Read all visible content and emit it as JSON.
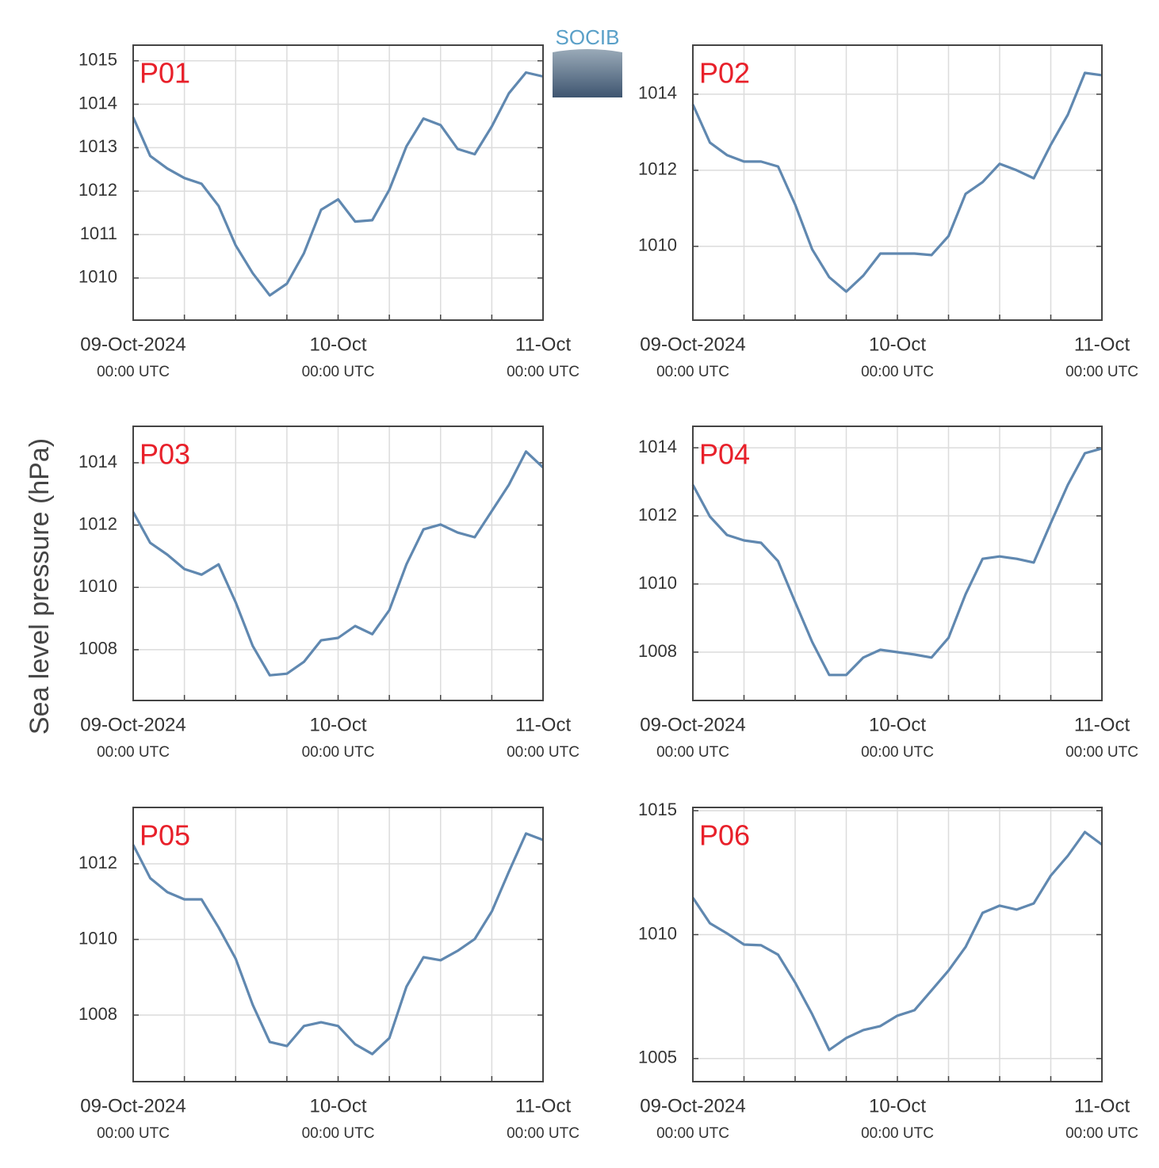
{
  "ylabel": "Sea level pressure (hPa)",
  "logo": "SOCIB",
  "chart_data": [
    {
      "type": "line",
      "title": "P01",
      "color": "#6088b0",
      "grid": true,
      "x": [
        "2024-10-09T00:00",
        "2024-10-09T02:00",
        "2024-10-09T04:00",
        "2024-10-09T06:00",
        "2024-10-09T08:00",
        "2024-10-09T10:00",
        "2024-10-09T12:00",
        "2024-10-09T14:00",
        "2024-10-09T16:00",
        "2024-10-09T18:00",
        "2024-10-09T20:00",
        "2024-10-09T22:00",
        "2024-10-10T00:00",
        "2024-10-10T02:00",
        "2024-10-10T04:00",
        "2024-10-10T06:00",
        "2024-10-10T08:00",
        "2024-10-10T10:00",
        "2024-10-10T12:00",
        "2024-10-10T14:00",
        "2024-10-10T16:00",
        "2024-10-10T18:00",
        "2024-10-10T20:00",
        "2024-10-10T22:00",
        "2024-10-11T00:00"
      ],
      "values": [
        1013.7,
        1012.81,
        1012.52,
        1012.3,
        1012.17,
        1011.66,
        1010.75,
        1010.11,
        1009.6,
        1009.87,
        1010.57,
        1011.57,
        1011.81,
        1011.3,
        1011.33,
        1012.03,
        1013.03,
        1013.67,
        1013.52,
        1012.97,
        1012.85,
        1013.49,
        1014.25,
        1014.73,
        1014.64
      ],
      "xlim": [
        "2024-10-09T00:00",
        "2024-10-11T00:00"
      ],
      "xticks": [
        {
          "value": "2024-10-09T00:00",
          "label": [
            "09-Oct-2024",
            "00:00 UTC"
          ]
        },
        {
          "value": "2024-10-09T06:00",
          "label": null
        },
        {
          "value": "2024-10-09T12:00",
          "label": null
        },
        {
          "value": "2024-10-09T18:00",
          "label": null
        },
        {
          "value": "2024-10-10T00:00",
          "label": [
            "10-Oct",
            "00:00 UTC"
          ]
        },
        {
          "value": "2024-10-10T06:00",
          "label": null
        },
        {
          "value": "2024-10-10T12:00",
          "label": null
        },
        {
          "value": "2024-10-10T18:00",
          "label": null
        },
        {
          "value": "2024-10-11T00:00",
          "label": [
            "11-Oct",
            "00:00 UTC"
          ]
        }
      ],
      "ylim": [
        1009.03,
        1015.36
      ],
      "yticks": [
        1010,
        1011,
        1012,
        1013,
        1014,
        1015
      ]
    },
    {
      "type": "line",
      "title": "P02",
      "color": "#6088b0",
      "grid": true,
      "x": [
        "2024-10-09T00:00",
        "2024-10-09T02:00",
        "2024-10-09T04:00",
        "2024-10-09T06:00",
        "2024-10-09T08:00",
        "2024-10-09T10:00",
        "2024-10-09T12:00",
        "2024-10-09T14:00",
        "2024-10-09T16:00",
        "2024-10-09T18:00",
        "2024-10-09T20:00",
        "2024-10-09T22:00",
        "2024-10-10T00:00",
        "2024-10-10T02:00",
        "2024-10-10T04:00",
        "2024-10-10T06:00",
        "2024-10-10T08:00",
        "2024-10-10T10:00",
        "2024-10-10T12:00",
        "2024-10-10T14:00",
        "2024-10-10T16:00",
        "2024-10-10T18:00",
        "2024-10-10T20:00",
        "2024-10-10T22:00",
        "2024-10-11T00:00"
      ],
      "values": [
        1013.73,
        1012.73,
        1012.4,
        1012.23,
        1012.23,
        1012.1,
        1011.1,
        1009.92,
        1009.19,
        1008.81,
        1009.23,
        1009.81,
        1009.81,
        1009.81,
        1009.77,
        1010.27,
        1011.38,
        1011.69,
        1012.17,
        1012.0,
        1011.79,
        1012.67,
        1013.46,
        1014.56,
        1014.5
      ],
      "xlim": [
        "2024-10-09T00:00",
        "2024-10-11T00:00"
      ],
      "xticks": [
        {
          "value": "2024-10-09T00:00",
          "label": [
            "09-Oct-2024",
            "00:00 UTC"
          ]
        },
        {
          "value": "2024-10-09T06:00",
          "label": null
        },
        {
          "value": "2024-10-09T12:00",
          "label": null
        },
        {
          "value": "2024-10-09T18:00",
          "label": null
        },
        {
          "value": "2024-10-10T00:00",
          "label": [
            "10-Oct",
            "00:00 UTC"
          ]
        },
        {
          "value": "2024-10-10T06:00",
          "label": null
        },
        {
          "value": "2024-10-10T12:00",
          "label": null
        },
        {
          "value": "2024-10-10T18:00",
          "label": null
        },
        {
          "value": "2024-10-11T00:00",
          "label": [
            "11-Oct",
            "00:00 UTC"
          ]
        }
      ],
      "ylim": [
        1008.06,
        1015.29
      ],
      "yticks": [
        1010,
        1012,
        1014
      ]
    },
    {
      "type": "line",
      "title": "P03",
      "color": "#6088b0",
      "grid": true,
      "x": [
        "2024-10-09T00:00",
        "2024-10-09T02:00",
        "2024-10-09T04:00",
        "2024-10-09T06:00",
        "2024-10-09T08:00",
        "2024-10-09T10:00",
        "2024-10-09T12:00",
        "2024-10-09T14:00",
        "2024-10-09T16:00",
        "2024-10-09T18:00",
        "2024-10-09T20:00",
        "2024-10-09T22:00",
        "2024-10-10T00:00",
        "2024-10-10T02:00",
        "2024-10-10T04:00",
        "2024-10-10T06:00",
        "2024-10-10T08:00",
        "2024-10-10T10:00",
        "2024-10-10T12:00",
        "2024-10-10T14:00",
        "2024-10-10T16:00",
        "2024-10-10T18:00",
        "2024-10-10T20:00",
        "2024-10-10T22:00",
        "2024-10-11T00:00"
      ],
      "values": [
        1012.42,
        1011.43,
        1011.05,
        1010.59,
        1010.41,
        1010.74,
        1009.52,
        1008.12,
        1007.18,
        1007.23,
        1007.61,
        1008.3,
        1008.38,
        1008.76,
        1008.5,
        1009.27,
        1010.74,
        1011.86,
        1012.02,
        1011.76,
        1011.61,
        1012.45,
        1013.29,
        1014.36,
        1013.85
      ],
      "xlim": [
        "2024-10-09T00:00",
        "2024-10-11T00:00"
      ],
      "xticks": [
        {
          "value": "2024-10-09T00:00",
          "label": [
            "09-Oct-2024",
            "00:00 UTC"
          ]
        },
        {
          "value": "2024-10-09T06:00",
          "label": null
        },
        {
          "value": "2024-10-09T12:00",
          "label": null
        },
        {
          "value": "2024-10-09T18:00",
          "label": null
        },
        {
          "value": "2024-10-10T00:00",
          "label": [
            "10-Oct",
            "00:00 UTC"
          ]
        },
        {
          "value": "2024-10-10T06:00",
          "label": null
        },
        {
          "value": "2024-10-10T12:00",
          "label": null
        },
        {
          "value": "2024-10-10T18:00",
          "label": null
        },
        {
          "value": "2024-10-11T00:00",
          "label": [
            "11-Oct",
            "00:00 UTC"
          ]
        }
      ],
      "ylim": [
        1006.37,
        1015.17
      ],
      "yticks": [
        1008,
        1010,
        1012,
        1014
      ]
    },
    {
      "type": "line",
      "title": "P04",
      "color": "#6088b0",
      "grid": true,
      "x": [
        "2024-10-09T00:00",
        "2024-10-09T02:00",
        "2024-10-09T04:00",
        "2024-10-09T06:00",
        "2024-10-09T08:00",
        "2024-10-09T10:00",
        "2024-10-09T12:00",
        "2024-10-09T14:00",
        "2024-10-09T16:00",
        "2024-10-09T18:00",
        "2024-10-09T20:00",
        "2024-10-09T22:00",
        "2024-10-10T00:00",
        "2024-10-10T02:00",
        "2024-10-10T04:00",
        "2024-10-10T06:00",
        "2024-10-10T08:00",
        "2024-10-10T10:00",
        "2024-10-10T12:00",
        "2024-10-10T14:00",
        "2024-10-10T16:00",
        "2024-10-10T18:00",
        "2024-10-10T20:00",
        "2024-10-10T22:00",
        "2024-10-11T00:00"
      ],
      "values": [
        1012.91,
        1011.98,
        1011.44,
        1011.28,
        1011.21,
        1010.67,
        1009.47,
        1008.3,
        1007.33,
        1007.33,
        1007.84,
        1008.07,
        1008.0,
        1007.93,
        1007.84,
        1008.42,
        1009.7,
        1010.74,
        1010.81,
        1010.74,
        1010.63,
        1011.79,
        1012.91,
        1013.84,
        1013.98
      ],
      "xlim": [
        "2024-10-09T00:00",
        "2024-10-11T00:00"
      ],
      "xticks": [
        {
          "value": "2024-10-09T00:00",
          "label": [
            "09-Oct-2024",
            "00:00 UTC"
          ]
        },
        {
          "value": "2024-10-09T06:00",
          "label": null
        },
        {
          "value": "2024-10-09T12:00",
          "label": null
        },
        {
          "value": "2024-10-09T18:00",
          "label": null
        },
        {
          "value": "2024-10-10T00:00",
          "label": [
            "10-Oct",
            "00:00 UTC"
          ]
        },
        {
          "value": "2024-10-10T06:00",
          "label": null
        },
        {
          "value": "2024-10-10T12:00",
          "label": null
        },
        {
          "value": "2024-10-10T18:00",
          "label": null
        },
        {
          "value": "2024-10-11T00:00",
          "label": [
            "11-Oct",
            "00:00 UTC"
          ]
        }
      ],
      "ylim": [
        1006.58,
        1014.63
      ],
      "yticks": [
        1008,
        1010,
        1012,
        1014
      ]
    },
    {
      "type": "line",
      "title": "P05",
      "color": "#6088b0",
      "grid": true,
      "x": [
        "2024-10-09T00:00",
        "2024-10-09T02:00",
        "2024-10-09T04:00",
        "2024-10-09T06:00",
        "2024-10-09T08:00",
        "2024-10-09T10:00",
        "2024-10-09T12:00",
        "2024-10-09T14:00",
        "2024-10-09T16:00",
        "2024-10-09T18:00",
        "2024-10-09T20:00",
        "2024-10-09T22:00",
        "2024-10-10T00:00",
        "2024-10-10T02:00",
        "2024-10-10T04:00",
        "2024-10-10T06:00",
        "2024-10-10T08:00",
        "2024-10-10T10:00",
        "2024-10-10T12:00",
        "2024-10-10T14:00",
        "2024-10-10T16:00",
        "2024-10-10T18:00",
        "2024-10-10T20:00",
        "2024-10-10T22:00",
        "2024-10-11T00:00"
      ],
      "values": [
        1012.5,
        1011.62,
        1011.25,
        1011.06,
        1011.06,
        1010.32,
        1009.49,
        1008.27,
        1007.29,
        1007.18,
        1007.71,
        1007.81,
        1007.71,
        1007.23,
        1006.97,
        1007.39,
        1008.75,
        1009.53,
        1009.45,
        1009.7,
        1010.01,
        1010.74,
        1011.79,
        1012.8,
        1012.63
      ],
      "xlim": [
        "2024-10-09T00:00",
        "2024-10-11T00:00"
      ],
      "xticks": [
        {
          "value": "2024-10-09T00:00",
          "label": [
            "09-Oct-2024",
            "00:00 UTC"
          ]
        },
        {
          "value": "2024-10-09T06:00",
          "label": null
        },
        {
          "value": "2024-10-09T12:00",
          "label": null
        },
        {
          "value": "2024-10-09T18:00",
          "label": null
        },
        {
          "value": "2024-10-10T00:00",
          "label": [
            "10-Oct",
            "00:00 UTC"
          ]
        },
        {
          "value": "2024-10-10T06:00",
          "label": null
        },
        {
          "value": "2024-10-10T12:00",
          "label": null
        },
        {
          "value": "2024-10-10T18:00",
          "label": null
        },
        {
          "value": "2024-10-11T00:00",
          "label": [
            "11-Oct",
            "00:00 UTC"
          ]
        }
      ],
      "ylim": [
        1006.24,
        1013.49
      ],
      "yticks": [
        1008,
        1010,
        1012
      ]
    },
    {
      "type": "line",
      "title": "P06",
      "color": "#6088b0",
      "grid": true,
      "x": [
        "2024-10-09T00:00",
        "2024-10-09T02:00",
        "2024-10-09T04:00",
        "2024-10-09T06:00",
        "2024-10-09T08:00",
        "2024-10-09T10:00",
        "2024-10-09T12:00",
        "2024-10-09T14:00",
        "2024-10-09T16:00",
        "2024-10-09T18:00",
        "2024-10-09T20:00",
        "2024-10-09T22:00",
        "2024-10-10T00:00",
        "2024-10-10T02:00",
        "2024-10-10T04:00",
        "2024-10-10T06:00",
        "2024-10-10T08:00",
        "2024-10-10T10:00",
        "2024-10-10T12:00",
        "2024-10-10T14:00",
        "2024-10-10T16:00",
        "2024-10-10T18:00",
        "2024-10-10T20:00",
        "2024-10-10T22:00",
        "2024-10-11T00:00"
      ],
      "values": [
        1011.49,
        1010.46,
        1010.05,
        1009.6,
        1009.57,
        1009.19,
        1008.07,
        1006.79,
        1005.35,
        1005.83,
        1006.15,
        1006.31,
        1006.73,
        1006.95,
        1007.75,
        1008.55,
        1009.5,
        1010.88,
        1011.17,
        1011.01,
        1011.26,
        1012.38,
        1013.18,
        1014.14,
        1013.63
      ],
      "xlim": [
        "2024-10-09T00:00",
        "2024-10-11T00:00"
      ],
      "xticks": [
        {
          "value": "2024-10-09T00:00",
          "label": [
            "09-Oct-2024",
            "00:00 UTC"
          ]
        },
        {
          "value": "2024-10-09T06:00",
          "label": null
        },
        {
          "value": "2024-10-09T12:00",
          "label": null
        },
        {
          "value": "2024-10-09T18:00",
          "label": null
        },
        {
          "value": "2024-10-10T00:00",
          "label": [
            "10-Oct",
            "00:00 UTC"
          ]
        },
        {
          "value": "2024-10-10T06:00",
          "label": null
        },
        {
          "value": "2024-10-10T12:00",
          "label": null
        },
        {
          "value": "2024-10-10T18:00",
          "label": null
        },
        {
          "value": "2024-10-11T00:00",
          "label": [
            "11-Oct",
            "00:00 UTC"
          ]
        }
      ],
      "ylim": [
        1004.07,
        1015.13
      ],
      "yticks": [
        1005,
        1010,
        1015
      ]
    }
  ]
}
